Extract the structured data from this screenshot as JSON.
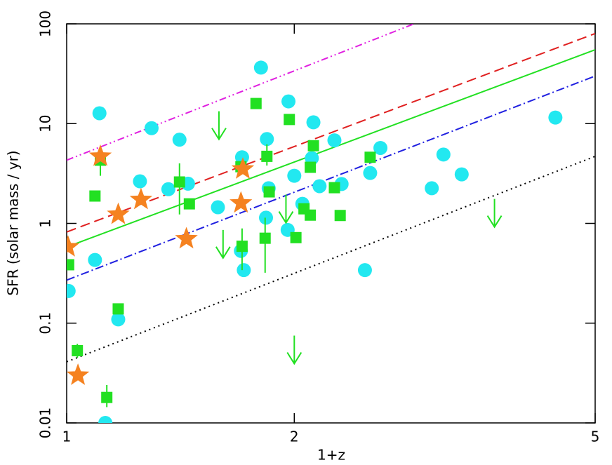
{
  "chart_data": {
    "type": "scatter",
    "x_label": "1+z",
    "y_label": "SFR (solar mass / yr)",
    "xlog": true,
    "ylog": true,
    "xlim": [
      1,
      5
    ],
    "ylim": [
      0.01,
      100
    ],
    "xticks": [
      1,
      2,
      5
    ],
    "yticks": [
      0.01,
      0.1,
      1,
      10,
      100
    ],
    "lines": [
      {
        "style": "dash-dot-dot",
        "color": "#e020e0",
        "x": [
          1,
          2.88
        ],
        "y": [
          4.3,
          100
        ]
      },
      {
        "style": "dash",
        "color": "#e02020",
        "x": [
          1,
          5
        ],
        "y": [
          0.82,
          80
        ]
      },
      {
        "style": "solid",
        "color": "#22e022",
        "x": [
          1,
          5
        ],
        "y": [
          0.58,
          55
        ]
      },
      {
        "style": "dash-dot",
        "color": "#2020e0",
        "x": [
          1,
          5
        ],
        "y": [
          0.27,
          30
        ]
      },
      {
        "style": "dot",
        "color": "#000000",
        "x": [
          1,
          5
        ],
        "y": [
          0.041,
          4.7
        ]
      }
    ],
    "series": [
      {
        "marker": "circle",
        "color": "#22e8f0",
        "x": [
          1.006,
          1.105,
          1.09,
          1.17,
          1.125,
          1.25,
          1.295,
          1.363,
          1.41,
          1.447,
          1.585,
          1.807,
          1.706,
          1.7,
          1.715,
          1.84,
          1.835,
          1.85,
          1.965,
          1.96,
          2.0,
          2.12,
          2.11,
          2.05,
          2.16,
          2.26,
          2.31,
          2.48,
          2.52,
          2.6,
          3.04,
          3.15,
          3.33,
          4.43
        ],
        "y": [
          0.21,
          12.7,
          0.43,
          0.109,
          0.01,
          2.64,
          9.0,
          2.2,
          6.9,
          2.5,
          1.45,
          36.4,
          4.6,
          0.53,
          0.34,
          7.0,
          1.14,
          2.25,
          16.7,
          0.86,
          3.0,
          10.3,
          4.5,
          1.57,
          2.36,
          6.8,
          2.48,
          0.34,
          3.2,
          5.7,
          2.25,
          4.9,
          3.1,
          11.5
        ]
      },
      {
        "marker": "square",
        "color": "#22e022",
        "x": [
          1.006,
          1.033,
          1.09,
          1.108,
          1.13,
          1.17,
          1.41,
          1.453,
          1.7,
          1.706,
          1.78,
          1.84,
          1.83,
          1.853,
          1.97,
          2.01,
          2.06,
          2.1,
          2.12,
          2.1,
          2.26,
          2.3,
          2.52
        ],
        "y": [
          0.385,
          0.053,
          1.88,
          4.3,
          0.018,
          0.139,
          2.6,
          1.57,
          3.7,
          0.59,
          15.9,
          4.7,
          0.71,
          2.07,
          11.0,
          0.72,
          1.4,
          1.21,
          6.0,
          3.65,
          2.28,
          1.2,
          4.6
        ],
        "ylo": [
          null,
          0.045,
          null,
          3.0,
          0.0144,
          null,
          1.23,
          null,
          null,
          0.34,
          null,
          3.8,
          0.32,
          null,
          null,
          null,
          null,
          null,
          null,
          null,
          null,
          null,
          null
        ],
        "yhi": [
          null,
          0.062,
          null,
          4.9,
          0.024,
          null,
          4.0,
          null,
          null,
          0.89,
          null,
          6.2,
          1.14,
          null,
          null,
          null,
          null,
          null,
          null,
          null,
          null,
          null,
          null
        ]
      },
      {
        "marker": "arrow",
        "color": "#22e022",
        "x": [
          1.59,
          1.61,
          2.0,
          1.95,
          3.68
        ],
        "y": [
          13.3,
          0.86,
          0.075,
          1.94,
          1.76
        ]
      },
      {
        "marker": "star",
        "color": "#f58220",
        "x": [
          1.004,
          1.035,
          1.108,
          1.17,
          1.254,
          1.44,
          1.7,
          1.71
        ],
        "y": [
          0.58,
          0.03,
          4.7,
          1.23,
          1.73,
          0.7,
          1.6,
          3.5
        ]
      }
    ]
  }
}
